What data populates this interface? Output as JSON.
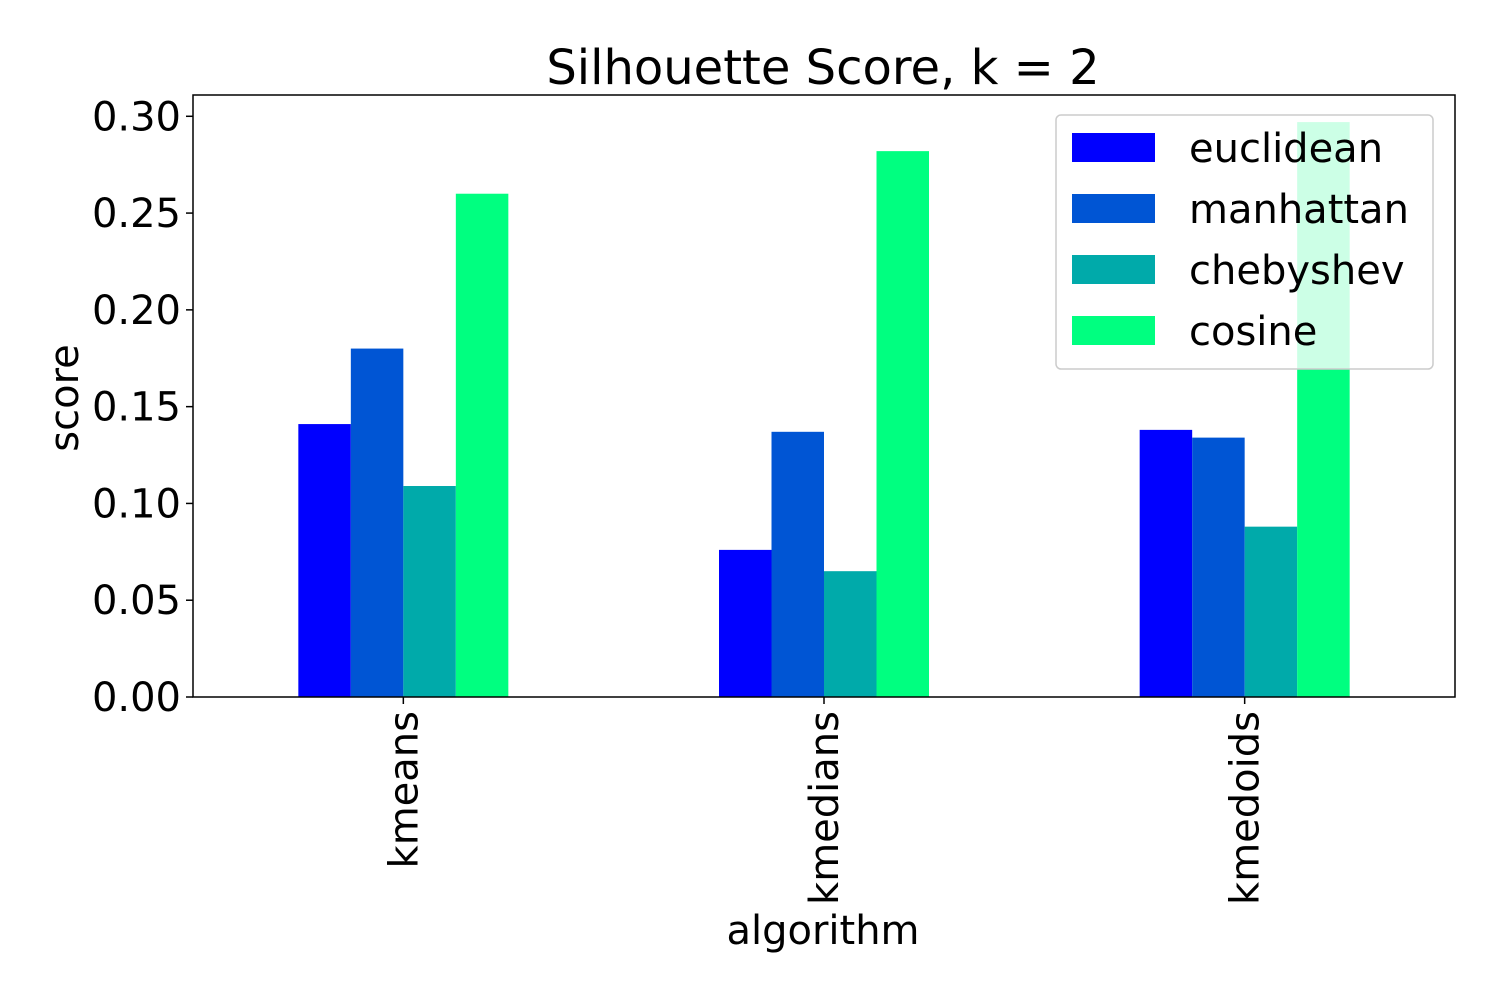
{
  "chart_data": {
    "type": "bar",
    "title": "Silhouette Score, k = 2",
    "xlabel": "algorithm",
    "ylabel": "score",
    "categories": [
      "kmeans",
      "kmedians",
      "kmedoids"
    ],
    "series": [
      {
        "name": "euclidean",
        "color": "#0000ff",
        "values": [
          0.141,
          0.076,
          0.138
        ]
      },
      {
        "name": "manhattan",
        "color": "#0055d4",
        "values": [
          0.18,
          0.137,
          0.134
        ]
      },
      {
        "name": "chebyshev",
        "color": "#00aaaa",
        "values": [
          0.109,
          0.065,
          0.088
        ]
      },
      {
        "name": "cosine",
        "color": "#00ff80",
        "values": [
          0.26,
          0.282,
          0.297
        ]
      }
    ],
    "ylim": [
      0,
      0.311
    ],
    "yticks": [
      "0.00",
      "0.05",
      "0.10",
      "0.15",
      "0.20",
      "0.25",
      "0.30"
    ],
    "ytick_values": [
      0,
      0.05,
      0.1,
      0.15,
      0.2,
      0.25,
      0.3
    ],
    "legend_position": "top-right",
    "grid": false
  }
}
